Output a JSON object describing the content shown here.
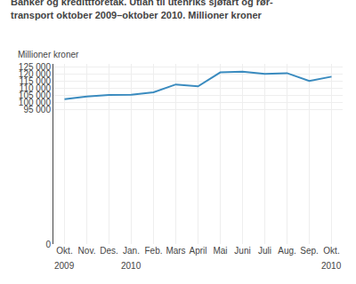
{
  "chart_data": {
    "type": "line",
    "title": "Banker og kredittforetak. Utlån til utenriks sjøfart og rør-\ntransport oktober 2009–oktober 2010. Millioner kroner",
    "ylabel": "Millioner kroner",
    "categories": [
      "Okt.",
      "Nov.",
      "Des.",
      "Jan.",
      "Feb.",
      "Mars",
      "April",
      "Mai",
      "Juni",
      "Juli",
      "Aug.",
      "Sep.",
      "Okt."
    ],
    "values": [
      102200,
      104000,
      105100,
      105200,
      107000,
      112500,
      111200,
      121000,
      121500,
      120000,
      120500,
      115000,
      118000
    ],
    "color": "#3a8bbf",
    "ylim": [
      0,
      127000
    ],
    "yticks": [
      0,
      {
        "value": 95000,
        "label": "95 000"
      },
      {
        "value": 100000,
        "label": "100 000"
      },
      {
        "value": 105000,
        "label": "105 000"
      },
      {
        "value": 110000,
        "label": "110 000"
      },
      {
        "value": 115000,
        "label": "115 000"
      },
      {
        "value": 120000,
        "label": "120 000"
      },
      {
        "value": 125000,
        "label": "125 000"
      }
    ],
    "grid": true,
    "annotations": [
      {
        "text": "2009",
        "x": 0
      },
      {
        "text": "2010",
        "x": 3
      },
      {
        "text": "2010",
        "x": 12
      }
    ]
  }
}
